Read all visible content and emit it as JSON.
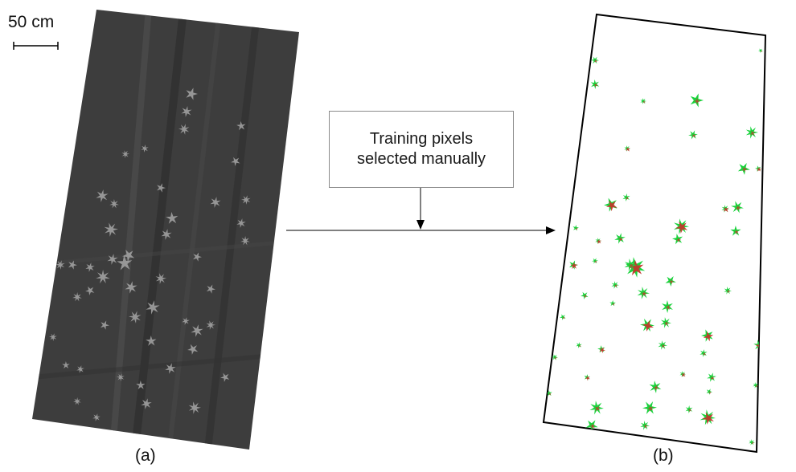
{
  "scale_bar": {
    "label": "50 cm"
  },
  "panels": {
    "a": {
      "caption": "(a)"
    },
    "b": {
      "caption": "(b)"
    }
  },
  "annotation": {
    "text": "Training pixels\nselected manually"
  },
  "colors": {
    "aerial_background": "#3d3d3d",
    "plant_gray": "#a6a6a6",
    "classified_green": "#19d33c",
    "classified_red": "#c0392b",
    "frame": "#000000"
  }
}
